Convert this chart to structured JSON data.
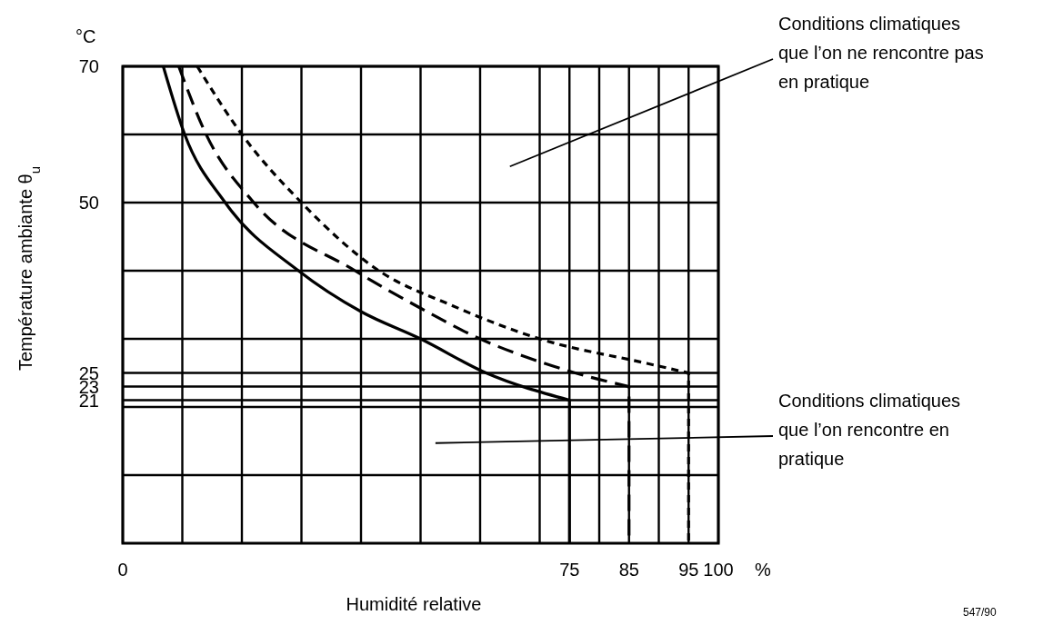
{
  "chart_data": {
    "type": "line",
    "xlabel": "Humidité relative",
    "ylabel": "Température ambiante θ$_{u}$",
    "xlim": [
      0,
      100
    ],
    "ylim": [
      0,
      70
    ],
    "xticks": [
      0,
      {
        "value": 10,
        "label": null
      },
      {
        "value": 20,
        "label": null
      },
      {
        "value": 30,
        "label": null
      },
      {
        "value": 40,
        "label": null
      },
      {
        "value": 50,
        "label": null
      },
      {
        "value": 60,
        "label": null
      },
      {
        "value": 70,
        "label": null
      },
      75,
      {
        "value": 80,
        "label": null
      },
      85,
      {
        "value": 90,
        "label": null
      },
      95,
      100
    ],
    "yticks": [
      {
        "value": 10,
        "label": null
      },
      {
        "value": 20,
        "label": null
      },
      21,
      23,
      25,
      {
        "value": 30,
        "label": null
      },
      {
        "value": 40,
        "label": null
      },
      50,
      {
        "value": 60,
        "label": null
      },
      70
    ],
    "grid": true,
    "series": [
      {
        "color": "#000000",
        "line_style": "solid",
        "x": [
          6.8,
          10.4,
          17.2,
          29.5,
          40,
          50,
          61,
          75,
          75
        ],
        "values": [
          70,
          60,
          50,
          40,
          34,
          30,
          25,
          21,
          0
        ]
      },
      {
        "color": "#000000",
        "line_style": "dashed",
        "x": [
          9.4,
          14,
          22,
          39,
          50,
          60,
          70.5,
          78,
          85,
          85
        ],
        "values": [
          70,
          60,
          50,
          40,
          34.5,
          30,
          26.5,
          24.5,
          23,
          0
        ]
      },
      {
        "color": "#000000",
        "line_style": "dotted",
        "x": [
          12.5,
          20,
          30,
          43,
          55,
          70,
          88,
          95,
          95
        ],
        "values": [
          70,
          60,
          50,
          40,
          35,
          30,
          26.4,
          25,
          0
        ]
      }
    ],
    "annotations": [
      "°C",
      "%",
      "547/90",
      "Conditions climatiques que l’on ne rencontre pas en pratique",
      "Conditions climatiques que l’on rencontre en pratique"
    ]
  }
}
